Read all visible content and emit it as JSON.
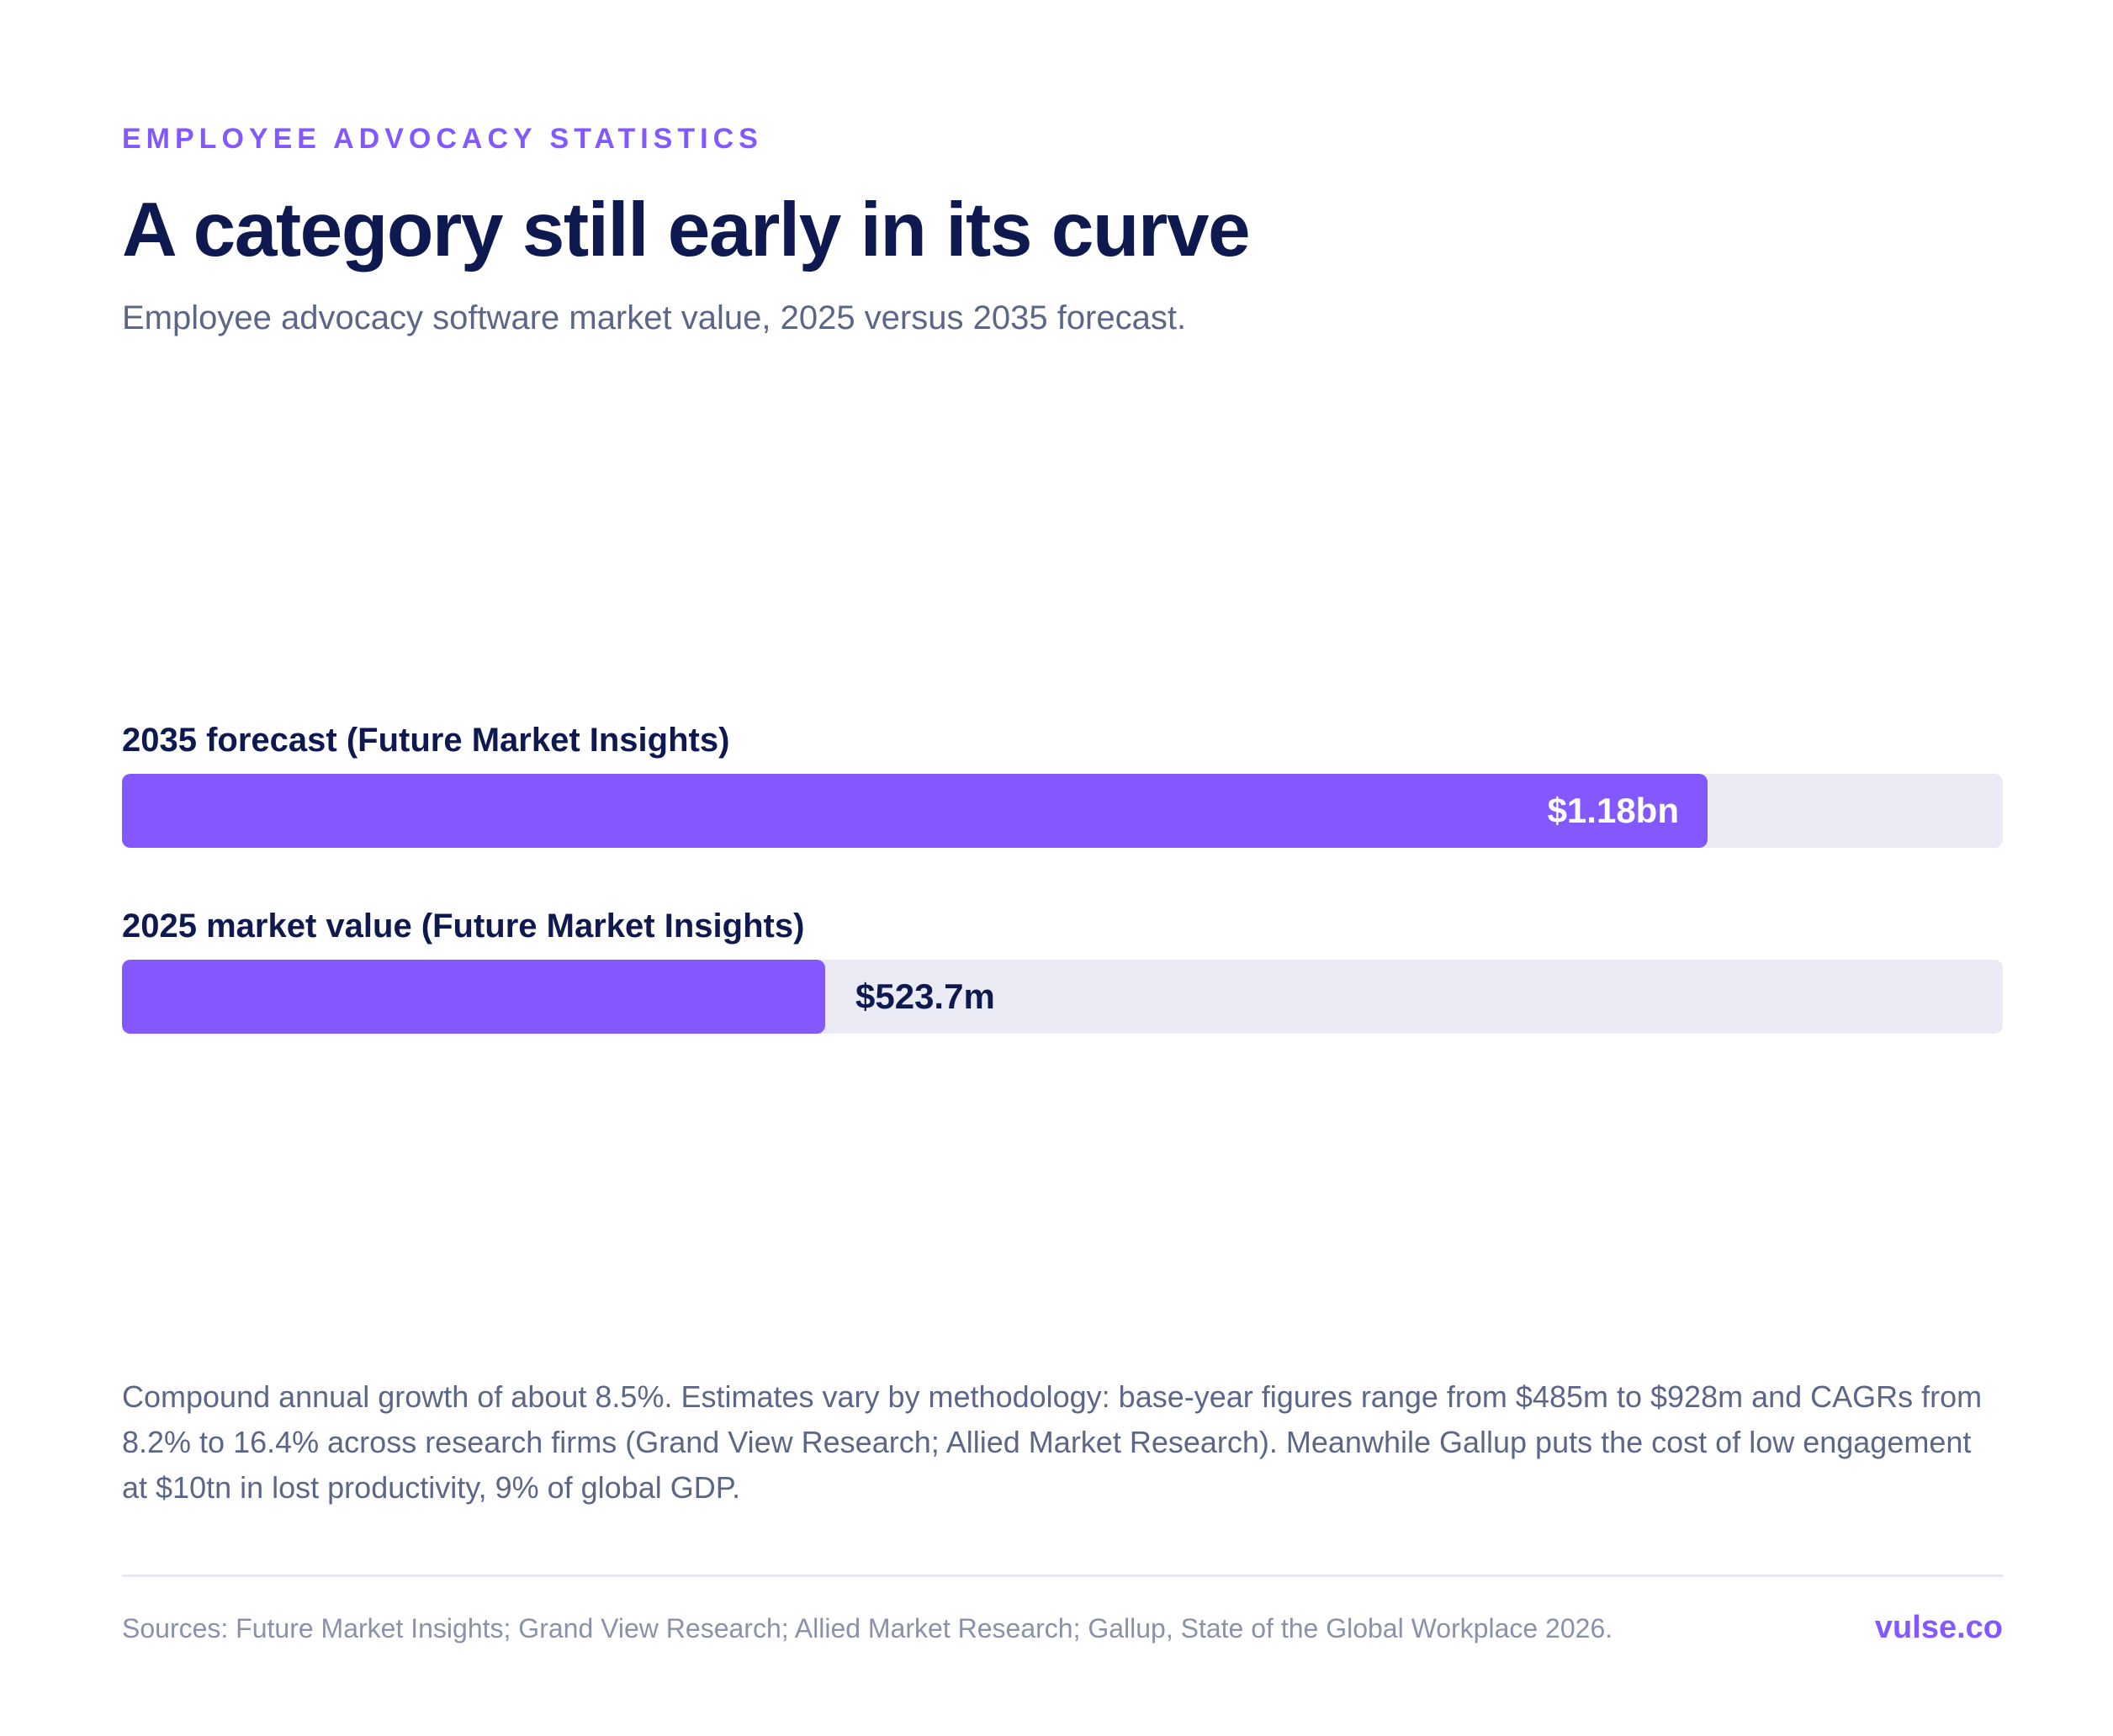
{
  "header": {
    "eyebrow": "EMPLOYEE ADVOCACY STATISTICS",
    "title": "A category still early in its curve",
    "subtitle": "Employee advocacy software market value, 2025 versus 2035 forecast."
  },
  "chart_data": {
    "type": "bar",
    "orientation": "horizontal",
    "title": "A category still early in its curve",
    "subtitle": "Employee advocacy software market value, 2025 versus 2035 forecast.",
    "unit": "USD",
    "categories": [
      "2035 forecast (Future Market Insights)",
      "2025 market value (Future Market Insights)"
    ],
    "values": [
      1180000000,
      523700000
    ],
    "value_labels": [
      "$1.18bn",
      "$523.7m"
    ],
    "xlim": [
      0,
      1400000000
    ],
    "grid": false,
    "colors": {
      "bar": "#8458ff",
      "track": "#ebebf5"
    }
  },
  "note": "Compound annual growth of about 8.5%. Estimates vary by methodology: base-year figures range from $485m to $928m and CAGRs from 8.2% to 16.4% across research firms (Grand View Research; Allied Market Research). Meanwhile Gallup puts the cost of low engagement at $10tn in lost productivity, 9% of global GDP.",
  "footer": {
    "sources": "Sources: Future Market Insights; Grand View Research; Allied Market Research; Gallup, State of the Global Workplace 2026.",
    "brand": "vulse.co"
  },
  "colors": {
    "accent": "#8458ff",
    "heading": "#0e1a4f",
    "body_text": "#5c6788",
    "muted_text": "#8a92aa"
  }
}
